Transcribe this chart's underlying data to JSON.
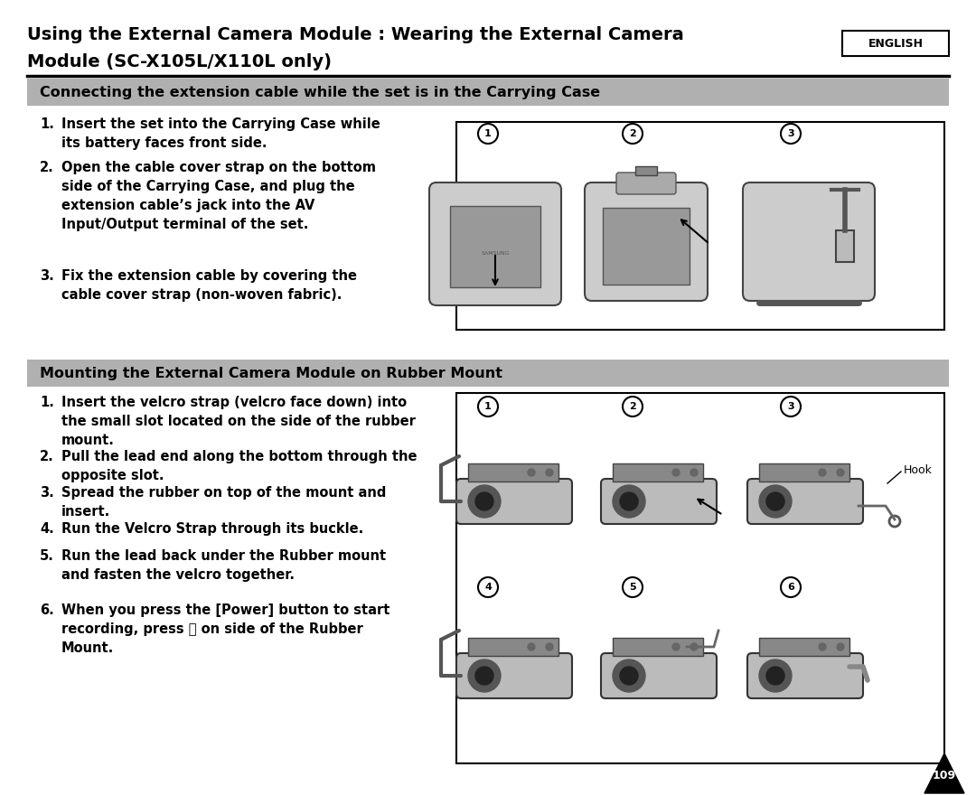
{
  "title_line1": "Using the External Camera Module : Wearing the External Camera",
  "title_line2": "Module (SC-X105L/X110L only)",
  "english_label": "ENGLISH",
  "section1_header": "Connecting the extension cable while the set is in the Carrying Case",
  "section1_steps": [
    "Insert the set into the Carrying Case while\nits battery faces front side.",
    "Open the cable cover strap on the bottom\nside of the Carrying Case, and plug the\nextension cable’s jack into the AV\nInput/Output terminal of the set.",
    "Fix the extension cable by covering the\ncable cover strap (non-woven fabric)."
  ],
  "section2_header": "Mounting the External Camera Module on Rubber Mount",
  "section2_steps": [
    "Insert the velcro strap (velcro face down) into\nthe small slot located on the side of the rubber\nmount.",
    "Pull the lead end along the bottom through the\nopposite slot.",
    "Spread the rubber on top of the mount and\ninsert.",
    "Run the Velcro Strap through its buckle.",
    "Run the lead back under the Rubber mount\nand fasten the velcro together.",
    "When you press the [Power] button to start\nrecording, press ⓒ on side of the Rubber\nMount."
  ],
  "page_number": "109",
  "bg_color": "#ffffff",
  "header_bg": "#b0b0b0",
  "title_color": "#000000",
  "header_text_color": "#000000",
  "body_text_color": "#000000"
}
